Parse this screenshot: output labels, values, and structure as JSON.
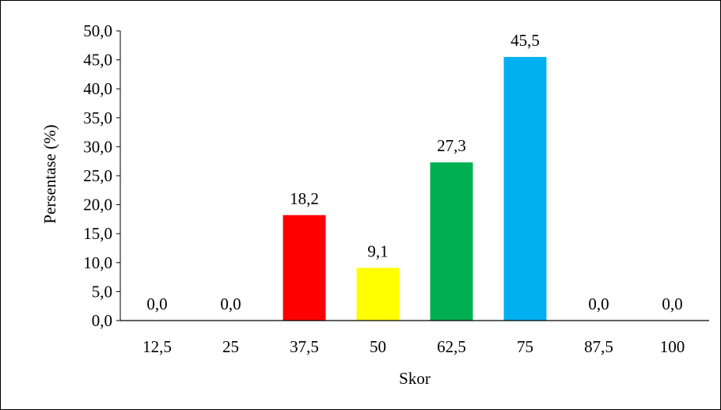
{
  "chart_data": {
    "type": "bar",
    "title": "",
    "xlabel": "Skor",
    "ylabel": "Persentase (%)",
    "categories": [
      "12,5",
      "25",
      "37,5",
      "50",
      "62,5",
      "75",
      "87,5",
      "100"
    ],
    "values": [
      0.0,
      0.0,
      18.2,
      9.1,
      27.3,
      45.5,
      0.0,
      0.0
    ],
    "value_labels": [
      "0,0",
      "0,0",
      "18,2",
      "9,1",
      "27,3",
      "45,5",
      "0,0",
      "0,0"
    ],
    "bar_colors": [
      "#FF0000",
      "#FF0000",
      "#FF0000",
      "#FFFF00",
      "#00B050",
      "#00B0F0",
      "#00B0F0",
      "#00B0F0"
    ],
    "ylim": [
      0,
      50
    ],
    "yticks": [
      0,
      5,
      10,
      15,
      20,
      25,
      30,
      35,
      40,
      45,
      50
    ],
    "ytick_labels": [
      "0,0",
      "5,0",
      "10,0",
      "15,0",
      "20,0",
      "25,0",
      "30,0",
      "35,0",
      "40,0",
      "45,0",
      "50,0"
    ],
    "grid": false,
    "legend": "none"
  }
}
